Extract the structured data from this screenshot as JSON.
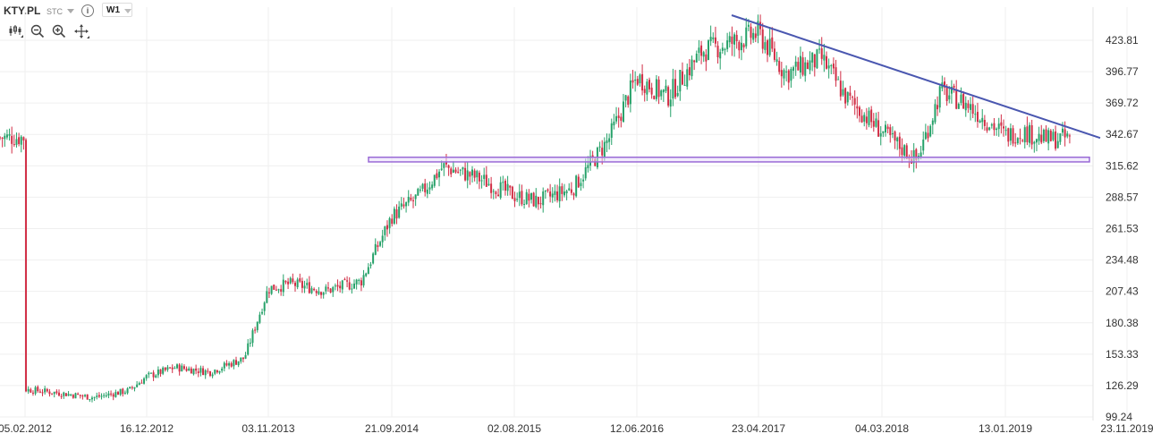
{
  "header": {
    "symbol": "KTY.PL",
    "price_type": "STC",
    "info_icon": "info-icon",
    "interval": "W1"
  },
  "tools": [
    "candles-icon",
    "zoom-out-icon",
    "zoom-in-icon",
    "crosshair-icon"
  ],
  "chart_data": {
    "type": "candlestick",
    "instrument": "KTY.PL",
    "interval": "W1",
    "y_axis_ticks": [
      "423.81",
      "396.77",
      "369.72",
      "342.67",
      "315.62",
      "288.57",
      "261.53",
      "234.48",
      "207.43",
      "180.38",
      "153.33",
      "126.29",
      "99.24"
    ],
    "ylim": [
      99.24,
      450
    ],
    "x_axis_ticks": [
      "05.02.2012",
      "16.12.2012",
      "03.11.2013",
      "21.09.2014",
      "02.08.2015",
      "12.06.2016",
      "23.04.2017",
      "04.03.2018",
      "13.01.2019",
      "23.11.2019"
    ],
    "series": [
      {
        "close_path": [
          [
            "05.02.2012",
            123
          ],
          [
            "2012-05",
            120
          ],
          [
            "2012-08",
            116
          ],
          [
            "2012-11",
            122
          ],
          [
            "16.12.2012",
            134
          ],
          [
            "2013-03",
            142
          ],
          [
            "2013-06",
            138
          ],
          [
            "2013-09",
            150
          ],
          [
            "03.11.2013",
            210
          ],
          [
            "2014-01",
            214
          ],
          [
            "2014-04",
            208
          ],
          [
            "2014-07",
            216
          ],
          [
            "21.09.2014",
            272
          ],
          [
            "2014-12",
            290
          ],
          [
            "2015-02",
            315
          ],
          [
            "2015-05",
            305
          ],
          [
            "02.08.2015",
            290
          ],
          [
            "2015-10",
            285
          ],
          [
            "2016-01",
            296
          ],
          [
            "2016-04",
            338
          ],
          [
            "12.06.2016",
            392
          ],
          [
            "2016-09",
            375
          ],
          [
            "2016-12",
            415
          ],
          [
            "2017-02",
            420
          ],
          [
            "23.04.2017",
            430
          ],
          [
            "2017-07",
            395
          ],
          [
            "2017-10",
            408
          ],
          [
            "2017-12",
            375
          ],
          [
            "04.03.2018",
            345
          ],
          [
            "2018-06",
            320
          ],
          [
            "2018-08",
            380
          ],
          [
            "2018-10",
            370
          ],
          [
            "13.01.2019",
            342
          ],
          [
            "2019-03",
            345
          ],
          [
            "2019-05",
            338
          ],
          [
            "2019-07",
            340
          ]
        ]
      }
    ],
    "colors": {
      "up": "#26a169",
      "down": "#d12d45",
      "trendline": "#4a57b0",
      "zone_border": "#9a6ad6",
      "zone_fill": "#e8ddfa"
    },
    "annotations": [
      {
        "type": "trendline",
        "from": [
          "23.04.2017",
          440
        ],
        "to": [
          "23.11.2019",
          335
        ]
      },
      {
        "type": "horizontal-zone",
        "from_date": "21.09.2014",
        "to_date": "23.11.2019",
        "low": 319,
        "high": 323
      }
    ],
    "grid": true
  }
}
